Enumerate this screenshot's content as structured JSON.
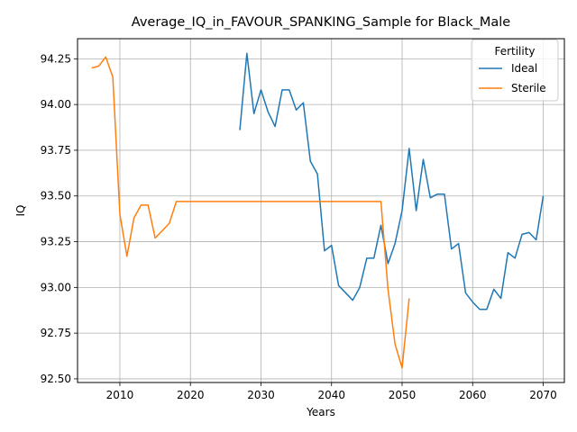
{
  "chart_data": {
    "type": "line",
    "title": "Average_IQ_in_FAVOUR_SPANKING_Sample for Black_Male",
    "xlabel": "Years",
    "ylabel": "IQ",
    "xlim": [
      2004,
      2073
    ],
    "ylim": [
      92.48,
      94.36
    ],
    "xticks": [
      2010,
      2020,
      2030,
      2040,
      2050,
      2060,
      2070
    ],
    "yticks": [
      92.5,
      92.75,
      93.0,
      93.25,
      93.5,
      93.75,
      94.0,
      94.25
    ],
    "ytick_labels": [
      "92.50",
      "92.75",
      "93.00",
      "93.25",
      "93.50",
      "93.75",
      "94.00",
      "94.25"
    ],
    "grid": true,
    "legend": {
      "title": "Fertility",
      "placement": "top-right"
    },
    "series": [
      {
        "name": "Ideal",
        "color": "#1f77b4",
        "x": [
          2027,
          2028,
          2029,
          2030,
          2031,
          2032,
          2033,
          2034,
          2035,
          2036,
          2037,
          2038,
          2039,
          2040,
          2041,
          2042,
          2043,
          2044,
          2045,
          2046,
          2047,
          2048,
          2049,
          2050,
          2051,
          2052,
          2053,
          2054,
          2055,
          2056,
          2057,
          2058,
          2059,
          2060,
          2061,
          2062,
          2063,
          2064,
          2065,
          2066,
          2067,
          2068,
          2069,
          2070
        ],
        "y": [
          93.86,
          94.28,
          93.95,
          94.08,
          93.96,
          93.88,
          94.08,
          94.08,
          93.97,
          94.01,
          93.69,
          93.62,
          93.2,
          93.23,
          93.01,
          92.97,
          92.93,
          93.0,
          93.16,
          93.16,
          93.34,
          93.13,
          93.24,
          93.42,
          93.76,
          93.42,
          93.7,
          93.49,
          93.51,
          93.51,
          93.21,
          93.24,
          92.97,
          92.92,
          92.88,
          92.88,
          92.99,
          92.94,
          93.19,
          93.16,
          93.29,
          93.3,
          93.26,
          93.5
        ]
      },
      {
        "name": "Sterile",
        "color": "#ff7f0e",
        "x": [
          2006,
          2007,
          2008,
          2009,
          2010,
          2011,
          2012,
          2013,
          2014,
          2015,
          2016,
          2017,
          2018,
          2019,
          2020,
          2025,
          2030,
          2035,
          2040,
          2045,
          2047,
          2048,
          2049,
          2050,
          2051
        ],
        "y": [
          94.2,
          94.21,
          94.26,
          94.15,
          93.4,
          93.17,
          93.38,
          93.45,
          93.45,
          93.27,
          93.31,
          93.35,
          93.47,
          93.47,
          93.47,
          93.47,
          93.47,
          93.47,
          93.47,
          93.47,
          93.47,
          92.99,
          92.69,
          92.56,
          92.94
        ]
      }
    ]
  }
}
